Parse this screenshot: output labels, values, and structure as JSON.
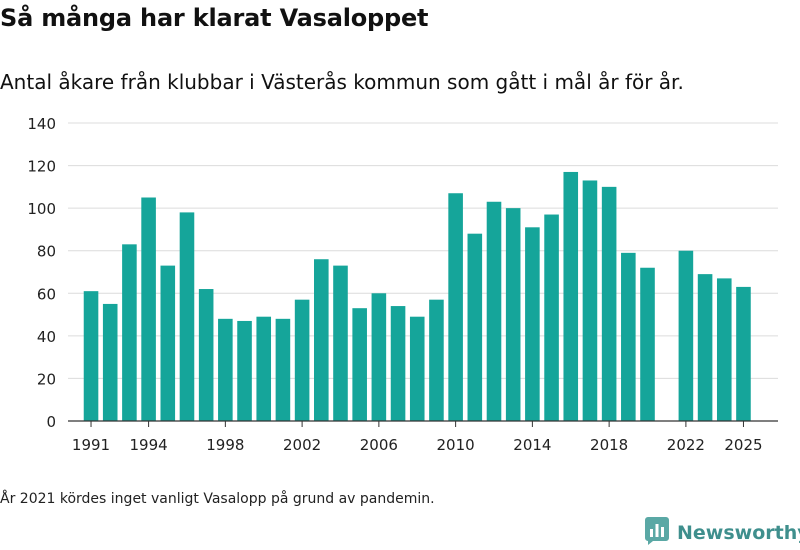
{
  "title": "Så många har klarat Vasaloppet",
  "subtitle": "Antal åkare från klubbar i Västerås kommun som gått i mål år för år.",
  "footnote": "År 2021 kördes inget vanligt Vasalopp på grund av pandemin.",
  "brand": {
    "name": "Newsworthy",
    "icon": "newsworthy-logo-icon",
    "color": "#3f8f8d"
  },
  "chart_data": {
    "type": "bar",
    "title": "",
    "xlabel": "",
    "ylabel": "",
    "ylim": [
      0,
      140
    ],
    "yticks": [
      0,
      20,
      40,
      60,
      80,
      100,
      120,
      140
    ],
    "xticks": [
      1991,
      1994,
      1998,
      2002,
      2006,
      2010,
      2014,
      2018,
      2022,
      2025
    ],
    "xlim": [
      1989.8,
      2026.8
    ],
    "grid": true,
    "bar_color": "#15a59a",
    "categories": [
      1991,
      1992,
      1993,
      1994,
      1995,
      1996,
      1997,
      1998,
      1999,
      2000,
      2001,
      2002,
      2003,
      2004,
      2005,
      2006,
      2007,
      2008,
      2009,
      2010,
      2011,
      2012,
      2013,
      2014,
      2015,
      2016,
      2017,
      2018,
      2019,
      2020,
      2022,
      2023,
      2024,
      2025
    ],
    "values": [
      61,
      55,
      83,
      105,
      73,
      98,
      62,
      48,
      47,
      49,
      48,
      57,
      76,
      73,
      53,
      60,
      54,
      49,
      57,
      107,
      88,
      103,
      100,
      91,
      97,
      117,
      113,
      110,
      79,
      72,
      80,
      69,
      67,
      63
    ]
  }
}
